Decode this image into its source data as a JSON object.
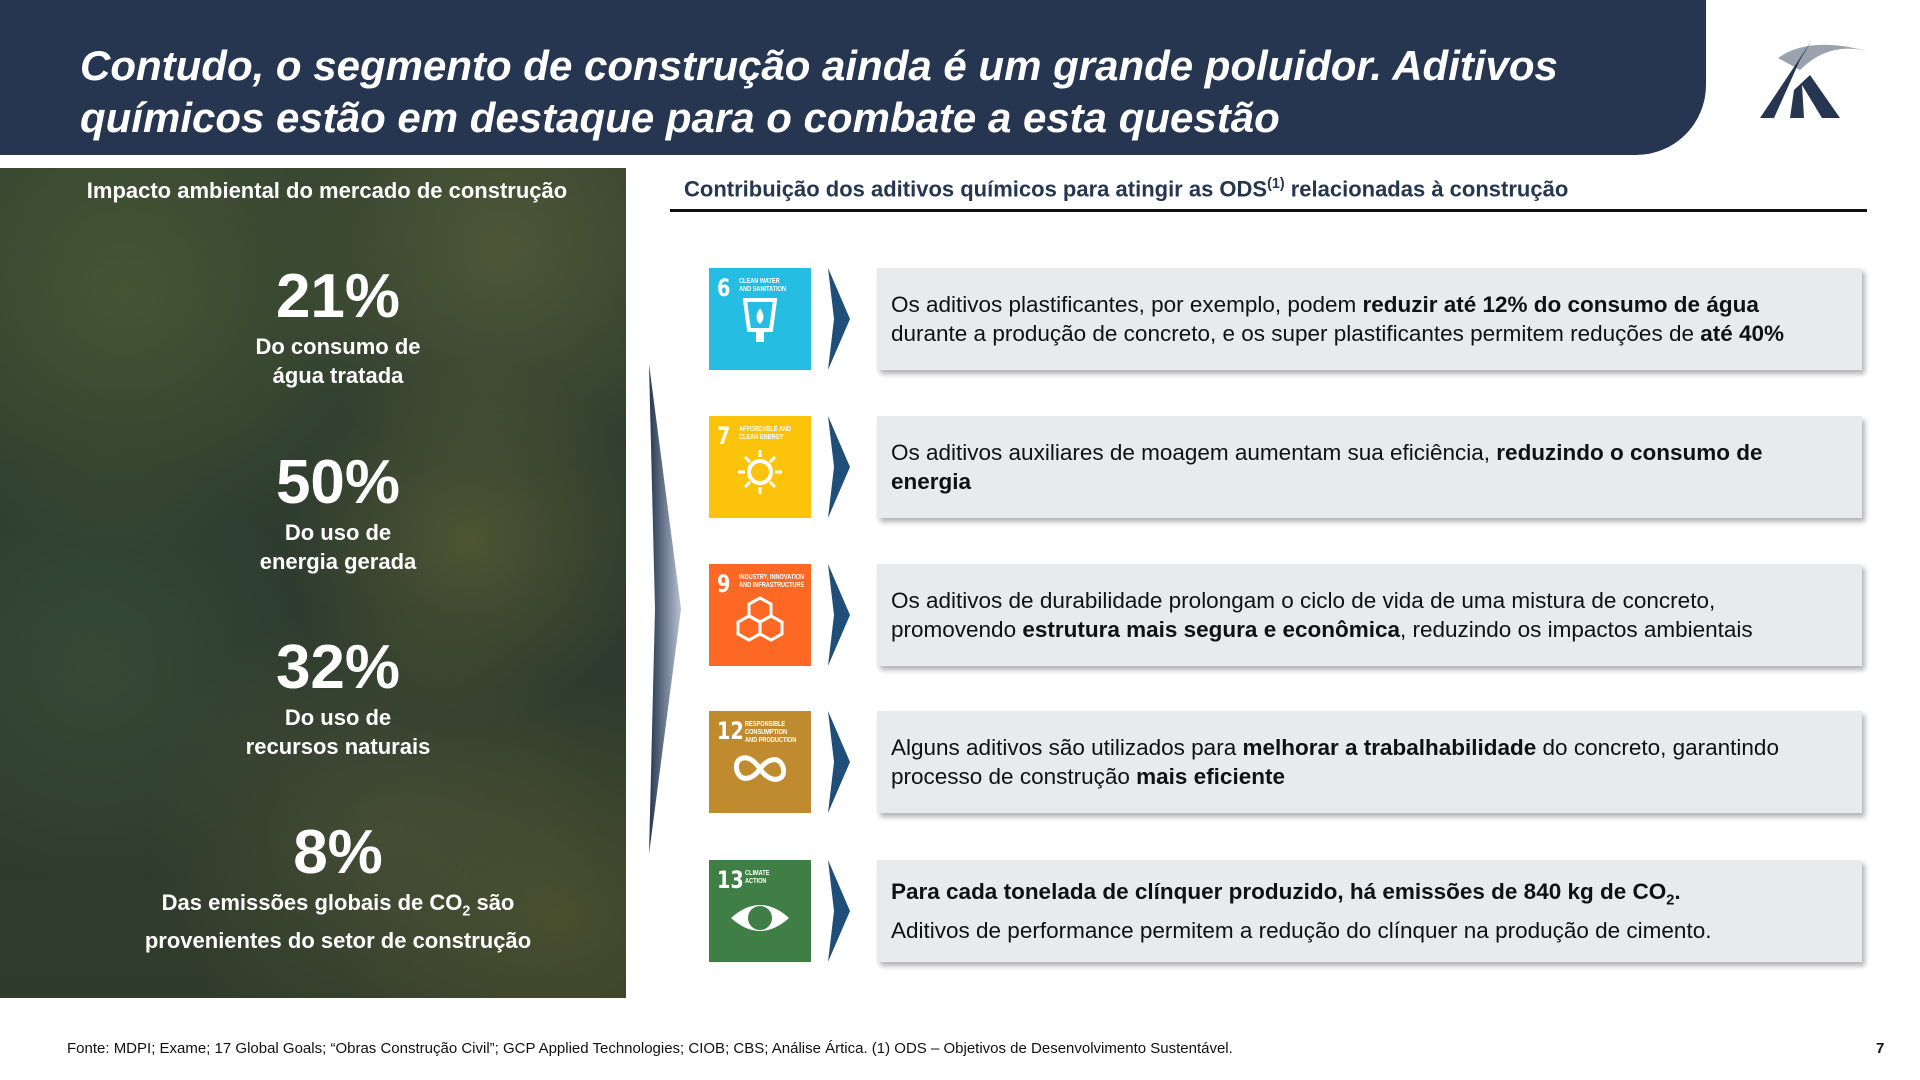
{
  "header": {
    "title_lines": [
      "Contudo, o segmento de construção ainda é um grande poluidor. Aditivos",
      "químicos estão em destaque para o combate a esta questão"
    ]
  },
  "left_panel": {
    "heading": "Impacto ambiental do mercado de construção",
    "stats": [
      {
        "value": "21%",
        "label_lines": [
          [
            "Do consumo de"
          ],
          [
            "água tratada"
          ]
        ]
      },
      {
        "value": "50%",
        "label_lines": [
          [
            "Do uso de"
          ],
          [
            "energia gerada"
          ]
        ]
      },
      {
        "value": "32%",
        "label_lines": [
          [
            "Do uso de"
          ],
          [
            "recursos naturais"
          ]
        ]
      },
      {
        "value": "8%",
        "label_lines": [
          [
            "Das emissões globais de CO",
            {
              "text": "2",
              "sub": true
            },
            " são"
          ],
          [
            "provenientes do setor de construção"
          ]
        ]
      }
    ]
  },
  "right_panel": {
    "heading": [
      [
        "Contribuição dos aditivos químicos para atingir as ODS",
        {
          "text": "(1)",
          "sup": true
        },
        " relacionadas à construção"
      ]
    ],
    "rows": [
      {
        "icon": {
          "number": "6",
          "label_lines": [
            "CLEAN WATER",
            "AND SANITATION"
          ],
          "color": "#26bde2"
        },
        "text_lines": [
          [
            "Os aditivos plastificantes, por exemplo, podem ",
            {
              "text": "reduzir até 12% do consumo de água",
              "bold": true
            }
          ],
          [
            "durante a produção de concreto, e os super plastificantes permitem reduções de ",
            {
              "text": "até 40%",
              "bold": true
            }
          ]
        ]
      },
      {
        "icon": {
          "number": "7",
          "label_lines": [
            "AFFORDABLE AND",
            "CLEAN ENERGY"
          ],
          "color": "#fcc30b"
        },
        "text_lines": [
          [
            "Os aditivos auxiliares de moagem aumentam sua eficiência, ",
            {
              "text": "reduzindo o consumo de",
              "bold": true
            }
          ],
          [
            {
              "text": "energia",
              "bold": true
            }
          ]
        ]
      },
      {
        "icon": {
          "number": "9",
          "label_lines": [
            "INDUSTRY, INNOVATION",
            "AND INFRASTRUCTURE"
          ],
          "color": "#fd6925"
        },
        "text_lines": [
          [
            "Os aditivos de durabilidade prolongam o ciclo de vida de uma mistura de concreto,"
          ],
          [
            "promovendo ",
            {
              "text": "estrutura mais segura e econômica",
              "bold": true
            },
            ", reduzindo os impactos ambientais"
          ]
        ]
      },
      {
        "icon": {
          "number": "12",
          "label_lines": [
            "RESPONSIBLE",
            "CONSUMPTION",
            "AND PRODUCTION"
          ],
          "color": "#bf8b2e"
        },
        "text_lines": [
          [
            "Alguns aditivos são utilizados para ",
            {
              "text": "melhorar a trabalhabilidade",
              "bold": true
            },
            " do concreto, garantindo"
          ],
          [
            "processo de construção ",
            {
              "text": "mais eficiente",
              "bold": true
            }
          ]
        ]
      },
      {
        "icon": {
          "number": "13",
          "label_lines": [
            "CLIMATE",
            "ACTION"
          ],
          "color": "#3f7e44"
        },
        "text_lines": [
          [
            {
              "text": "Para cada tonelada de clínquer produzido, há emissões de 840 kg de CO",
              "bold": true
            },
            {
              "text": "2",
              "sub": true,
              "bold": true
            },
            {
              "text": ".",
              "bold": true
            }
          ],
          [
            "Aditivos de performance permitem a redução do clínquer na produção de cimento."
          ]
        ]
      }
    ]
  },
  "footer": {
    "source": "Fonte: MDPI; Exame; 17 Global Goals; “Obras Construção Civil”; GCP Applied Technologies; CIOB; CBS; Análise Ártica. (1) ODS – Objetivos de Desenvolvimento Sustentável.",
    "page": "7"
  }
}
